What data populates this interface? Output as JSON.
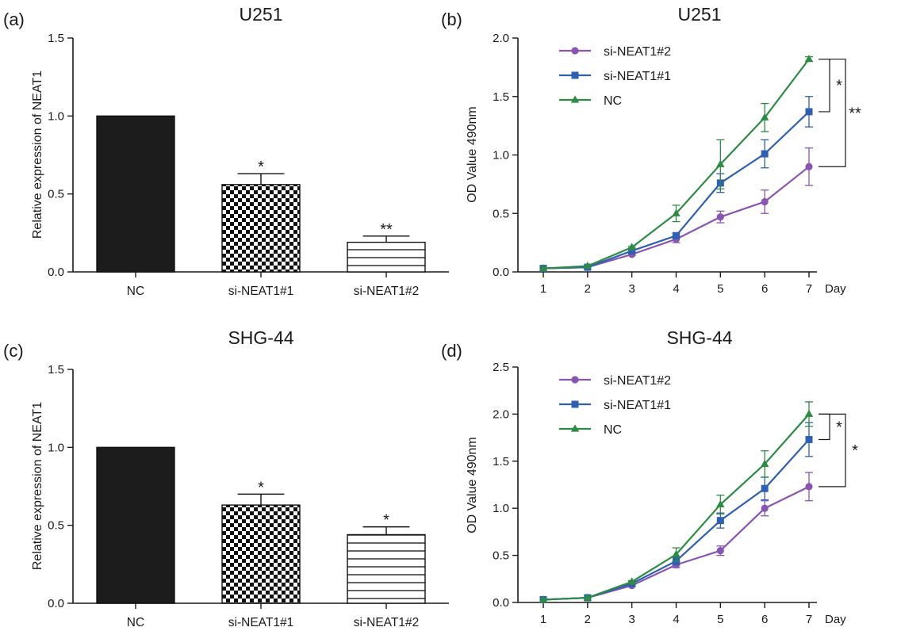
{
  "chart_data": [
    {
      "type": "bar",
      "panel_label": "(a)",
      "title": "U251",
      "ylabel": "Relative expression of NEAT1",
      "ylim": [
        0,
        1.5
      ],
      "yticks": [
        "0.0",
        "0.5",
        "1.0",
        "1.5"
      ],
      "categories": [
        "NC",
        "si-NEAT1#1",
        "si-NEAT1#2"
      ],
      "values": [
        1.0,
        0.56,
        0.19
      ],
      "errors": [
        0,
        0.07,
        0.04
      ],
      "patterns": [
        "solid",
        "checker",
        "hlines"
      ],
      "significance": [
        "",
        "*",
        "**"
      ]
    },
    {
      "type": "line",
      "panel_label": "(b)",
      "title": "U251",
      "ylabel": "OD Value 490nm",
      "xlabel": "Day",
      "x": [
        1,
        2,
        3,
        4,
        5,
        6,
        7
      ],
      "xticks": [
        "1",
        "2",
        "3",
        "4",
        "5",
        "6",
        "7"
      ],
      "ylim": [
        0,
        2.0
      ],
      "yticks": [
        "0.0",
        "0.5",
        "1.0",
        "1.5",
        "2.0"
      ],
      "legend": "top-left",
      "series": [
        {
          "name": "si-NEAT1#2",
          "color": "#8855b3",
          "marker": "circle",
          "values": [
            0.03,
            0.04,
            0.15,
            0.28,
            0.47,
            0.6,
            0.9
          ],
          "errors": [
            0,
            0,
            0.01,
            0.03,
            0.05,
            0.1,
            0.16
          ]
        },
        {
          "name": "si-NEAT1#1",
          "color": "#2e5fb0",
          "marker": "square",
          "values": [
            0.03,
            0.04,
            0.18,
            0.31,
            0.76,
            1.01,
            1.37
          ],
          "errors": [
            0,
            0,
            0.01,
            0.02,
            0.08,
            0.12,
            0.13
          ]
        },
        {
          "name": "NC",
          "color": "#2e8b44",
          "marker": "triangle",
          "values": [
            0.03,
            0.05,
            0.21,
            0.5,
            0.92,
            1.32,
            1.82
          ],
          "errors": [
            0,
            0,
            0.01,
            0.07,
            0.21,
            0.12,
            0.02
          ]
        }
      ],
      "significance": [
        {
          "from": 1,
          "to": 2,
          "label": "*"
        },
        {
          "from": 0,
          "to": 2,
          "label": "**"
        }
      ]
    },
    {
      "type": "bar",
      "panel_label": "(c)",
      "title": "SHG-44",
      "ylabel": "Relative expression of NEAT1",
      "ylim": [
        0,
        1.5
      ],
      "yticks": [
        "0.0",
        "0.5",
        "1.0",
        "1.5"
      ],
      "categories": [
        "NC",
        "si-NEAT1#1",
        "si-NEAT1#2"
      ],
      "values": [
        1.0,
        0.63,
        0.44
      ],
      "errors": [
        0,
        0.07,
        0.05
      ],
      "patterns": [
        "solid",
        "checker",
        "hlines"
      ],
      "significance": [
        "",
        "*",
        "*"
      ]
    },
    {
      "type": "line",
      "panel_label": "(d)",
      "title": "SHG-44",
      "ylabel": "OD Value 490nm",
      "xlabel": "Day",
      "x": [
        1,
        2,
        3,
        4,
        5,
        6,
        7
      ],
      "xticks": [
        "1",
        "2",
        "3",
        "4",
        "5",
        "6",
        "7"
      ],
      "ylim": [
        0,
        2.5
      ],
      "yticks": [
        "0.0",
        "0.5",
        "1.0",
        "1.5",
        "2.0",
        "2.5"
      ],
      "legend": "top-left",
      "series": [
        {
          "name": "si-NEAT1#2",
          "color": "#8855b3",
          "marker": "circle",
          "values": [
            0.03,
            0.05,
            0.18,
            0.4,
            0.55,
            1.0,
            1.23
          ],
          "errors": [
            0,
            0,
            0.01,
            0.03,
            0.05,
            0.08,
            0.15
          ]
        },
        {
          "name": "si-NEAT1#1",
          "color": "#2e5fb0",
          "marker": "square",
          "values": [
            0.03,
            0.05,
            0.2,
            0.44,
            0.87,
            1.21,
            1.73
          ],
          "errors": [
            0,
            0,
            0.01,
            0.04,
            0.08,
            0.12,
            0.18
          ]
        },
        {
          "name": "NC",
          "color": "#2e8b44",
          "marker": "triangle",
          "values": [
            0.03,
            0.05,
            0.22,
            0.51,
            1.04,
            1.47,
            2.0
          ],
          "errors": [
            0,
            0,
            0.01,
            0.07,
            0.1,
            0.14,
            0.13
          ]
        }
      ],
      "significance": [
        {
          "from": 1,
          "to": 2,
          "label": "*"
        },
        {
          "from": 0,
          "to": 2,
          "label": "*"
        }
      ]
    }
  ]
}
